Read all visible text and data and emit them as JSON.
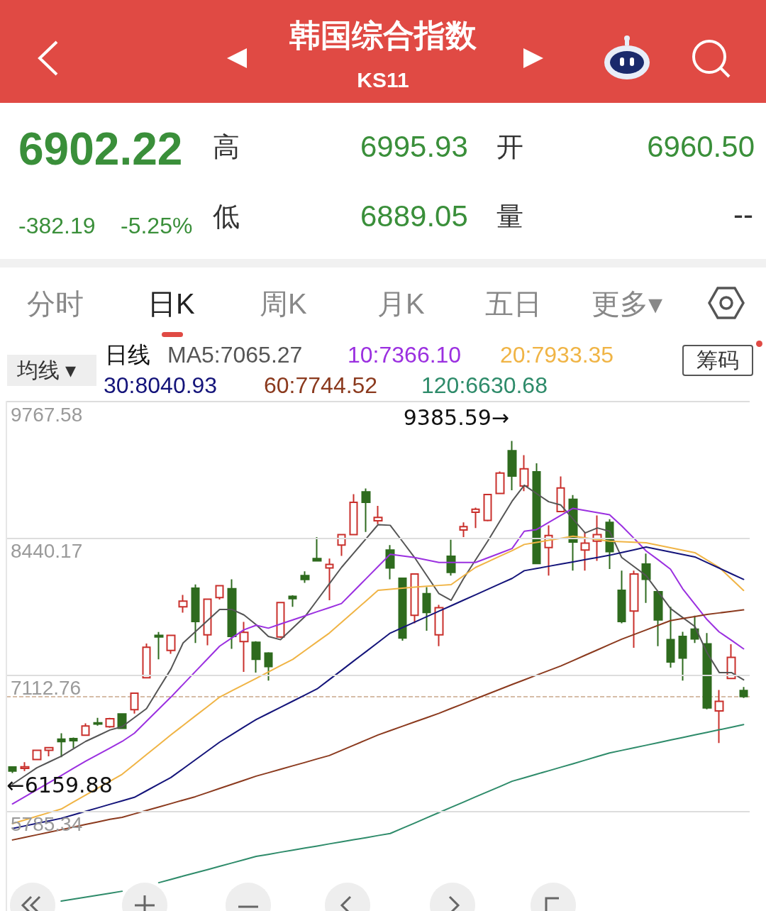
{
  "chart_data": {
    "type": "candlestick",
    "title": "韩国综合指数",
    "subtitle": "KS11",
    "categories": [
      null,
      null,
      null,
      null,
      null,
      null,
      null,
      null,
      null,
      null,
      null,
      null,
      null,
      null,
      null,
      null,
      null,
      null,
      null,
      null,
      null,
      null,
      null,
      null,
      null,
      null,
      null,
      null,
      null,
      null,
      null,
      null,
      null,
      null,
      null,
      null,
      null,
      null,
      null,
      null,
      null,
      null,
      null,
      null,
      null,
      null,
      null,
      null,
      null,
      null,
      null,
      null,
      null,
      null,
      null,
      null,
      null,
      null,
      null,
      null,
      null
    ],
    "ohlc": [
      [
        6218,
        6224,
        6159.88,
        6179
      ],
      [
        6205,
        6266,
        6179,
        6221
      ],
      [
        6291,
        6387,
        6285,
        6380
      ],
      [
        6380,
        6412,
        6323,
        6406
      ],
      [
        6489,
        6546,
        6313,
        6466
      ],
      [
        6495,
        6505,
        6403,
        6473
      ],
      [
        6527,
        6642,
        6521,
        6616
      ],
      [
        6648,
        6696,
        6620,
        6636
      ],
      [
        6610,
        6696,
        6600,
        6687
      ],
      [
        6734,
        6741,
        6588,
        6594
      ],
      [
        6776,
        6942,
        6738,
        6935
      ],
      [
        7085,
        7417,
        7079,
        7382
      ],
      [
        7497,
        7529,
        7264,
        7481
      ],
      [
        7350,
        7503,
        7318,
        7497
      ],
      [
        7774,
        7889,
        7717,
        7829
      ],
      [
        7956,
        7991,
        7423,
        7631
      ],
      [
        7503,
        7854,
        7401,
        7848
      ],
      [
        7864,
        7985,
        7845,
        7979
      ],
      [
        7950,
        8042,
        7366,
        7487
      ],
      [
        7436,
        7628,
        7143,
        7526
      ],
      [
        7430,
        7440,
        7136,
        7264
      ],
      [
        7325,
        7334,
        7057,
        7194
      ],
      [
        7481,
        7822,
        7471,
        7816
      ],
      [
        7876,
        7886,
        7774,
        7854
      ],
      [
        8077,
        8119,
        8007,
        8039
      ],
      [
        8243,
        8451,
        8215,
        8221
      ],
      [
        8151,
        8243,
        7838,
        8186
      ],
      [
        8374,
        8482,
        8269,
        8476
      ],
      [
        8476,
        8869,
        8470,
        8789
      ],
      [
        8891,
        8923,
        8502,
        8789
      ],
      [
        8610,
        8754,
        8578,
        8642
      ],
      [
        8326,
        8374,
        8042,
        8151
      ],
      [
        8052,
        8055,
        7446,
        7471
      ],
      [
        7691,
        8100,
        7615,
        8093
      ],
      [
        7902,
        7966,
        7542,
        7720
      ],
      [
        7503,
        7794,
        7392,
        7765
      ],
      [
        8266,
        8425,
        8077,
        8109
      ],
      [
        8521,
        8594,
        8451,
        8553
      ],
      [
        8693,
        8738,
        8540,
        8722
      ],
      [
        8613,
        8872,
        8604,
        8865
      ],
      [
        8875,
        9089,
        8869,
        9073
      ],
      [
        9290,
        9385.59,
        8907,
        9044
      ],
      [
        8948,
        9248,
        8897,
        9114
      ],
      [
        9085,
        9168,
        8189,
        8195
      ],
      [
        8349,
        8566,
        8077,
        8467
      ],
      [
        8699,
        9041,
        8693,
        8929
      ],
      [
        8818,
        8859,
        8125,
        8403
      ],
      [
        8326,
        8502,
        8125,
        8393
      ],
      [
        8412,
        8661,
        8221,
        8476
      ],
      [
        8594,
        8626,
        8141,
        8310
      ],
      [
        7934,
        8125,
        7615,
        7631
      ],
      [
        7733,
        8125,
        7376,
        8093
      ],
      [
        8189,
        8291,
        7813,
        8042
      ],
      [
        7921,
        7928,
        7392,
        7647
      ],
      [
        7455,
        7774,
        7184,
        7238
      ],
      [
        7487,
        7532,
        7057,
        7277
      ],
      [
        7557,
        7688,
        7423,
        7462
      ],
      [
        7414,
        7519,
        6779,
        6792
      ],
      [
        6763,
        6967,
        6451,
        6856
      ],
      [
        7079,
        7411,
        7073,
        7284
      ],
      [
        6960.5,
        6995.93,
        6889.05,
        6902.22
      ]
    ],
    "colors": [
      "#2e6b1e",
      "#c9302c",
      "#c9302c",
      "#c9302c",
      "#2e6b1e",
      "#2e6b1e",
      "#c9302c",
      "#2e6b1e",
      "#c9302c",
      "#2e6b1e",
      "#c9302c",
      "#c9302c",
      "#2e6b1e",
      "#c9302c",
      "#c9302c",
      "#2e6b1e",
      "#c9302c",
      "#c9302c",
      "#2e6b1e",
      "#c9302c",
      "#2e6b1e",
      "#2e6b1e",
      "#c9302c",
      "#2e6b1e",
      "#2e6b1e",
      "#2e6b1e",
      "#c9302c",
      "#c9302c",
      "#c9302c",
      "#2e6b1e",
      "#c9302c",
      "#2e6b1e",
      "#2e6b1e",
      "#c9302c",
      "#2e6b1e",
      "#c9302c",
      "#2e6b1e",
      "#c9302c",
      "#c9302c",
      "#c9302c",
      "#c9302c",
      "#2e6b1e",
      "#c9302c",
      "#2e6b1e",
      "#c9302c",
      "#c9302c",
      "#2e6b1e",
      "#c9302c",
      "#c9302c",
      "#2e6b1e",
      "#2e6b1e",
      "#c9302c",
      "#2e6b1e",
      "#2e6b1e",
      "#2e6b1e",
      "#2e6b1e",
      "#2e6b1e",
      "#2e6b1e",
      "#c9302c",
      "#c9302c",
      "#2e6b1e"
    ],
    "series": [
      {
        "name": "MA5:7065.27",
        "type": "line",
        "color": "#555555",
        "values": [
          6052,
          6131,
          6211,
          6267,
          6323,
          6395,
          6467,
          6522,
          6578,
          6610,
          6698,
          6786,
          6978,
          7169,
          7423,
          7532,
          7640,
          7749,
          7749,
          7695,
          7600,
          7487,
          7455,
          7567,
          7679,
          7838,
          7998,
          8157,
          8295,
          8434,
          8572,
          8566,
          8410,
          8253,
          8078,
          7902,
          7838,
          8045,
          8229,
          8412,
          8606,
          8800,
          8955,
          8875,
          8795,
          8763,
          8628,
          8492,
          8540,
          8508,
          8253,
          8165,
          8077,
          7918,
          7758,
          7670,
          7583,
          7328,
          7136,
          7136,
          7065.27
        ]
      },
      {
        "name": "10:7366.10",
        "type": "line",
        "color": "#9b30e0",
        "values": [
          5860,
          5929,
          5998,
          6067,
          6136,
          6206,
          6275,
          6339,
          6403,
          6467,
          6546,
          6663,
          6780,
          6897,
          7021,
          7145,
          7268,
          7392,
          7472,
          7551,
          7595,
          7567,
          7607,
          7647,
          7687,
          7727,
          7766,
          7806,
          7926,
          8046,
          8165,
          8285,
          8269,
          8253,
          8229,
          8205,
          8205,
          8205,
          8205,
          8250,
          8295,
          8340,
          8508,
          8524,
          8593,
          8662,
          8731,
          8710,
          8689,
          8668,
          8560,
          8440,
          8317,
          8230,
          8140,
          7950,
          7800,
          7650,
          7530,
          7450,
          7366.1
        ]
      },
      {
        "name": "20:7933.35",
        "type": "line",
        "color": "#f0b445",
        "values": [
          5669,
          5704,
          5740,
          5775,
          5810,
          5878,
          5945,
          6013,
          6080,
          6148,
          6243,
          6339,
          6434,
          6530,
          6622,
          6714,
          6805,
          6897,
          6958,
          7019,
          7080,
          7141,
          7203,
          7264,
          7349,
          7434,
          7519,
          7623,
          7727,
          7830,
          7934,
          7945,
          7955,
          7966,
          7974,
          7982,
          7990,
          8074,
          8157,
          8211,
          8266,
          8320,
          8380,
          8400,
          8420,
          8440,
          8460,
          8444,
          8428,
          8412,
          8407,
          8401,
          8396,
          8372,
          8348,
          8324,
          8300,
          8229,
          8157,
          8045,
          7933.35
        ]
      },
      {
        "name": "30:8040.93",
        "type": "line",
        "color": "#14147a",
        "values": [
          5621,
          5646,
          5671,
          5695,
          5720,
          5754,
          5788,
          5822,
          5856,
          5890,
          5924,
          5988,
          6052,
          6116,
          6202,
          6288,
          6374,
          6460,
          6533,
          6607,
          6680,
          6739,
          6799,
          6858,
          6918,
          6977,
          7067,
          7157,
          7248,
          7338,
          7428,
          7519,
          7572,
          7625,
          7679,
          7732,
          7785,
          7838,
          7891,
          7944,
          7997,
          8050,
          8125,
          8146,
          8168,
          8189,
          8211,
          8232,
          8254,
          8275,
          8302,
          8328,
          8355,
          8331,
          8307,
          8283,
          8259,
          8204,
          8150,
          8095,
          8040.93
        ]
      },
      {
        "name": "60:7744.52",
        "type": "line",
        "color": "#8b3a1e",
        "values": [
          5510,
          5535,
          5560,
          5585,
          5610,
          5635,
          5660,
          5685,
          5710,
          5730,
          5763,
          5797,
          5830,
          5863,
          5897,
          5930,
          5970,
          6010,
          6050,
          6090,
          6130,
          6163,
          6197,
          6230,
          6263,
          6297,
          6330,
          6380,
          6430,
          6480,
          6530,
          6572,
          6614,
          6656,
          6698,
          6740,
          6787,
          6833,
          6880,
          6927,
          6973,
          7020,
          7065,
          7110,
          7155,
          7200,
          7252,
          7304,
          7356,
          7408,
          7460,
          7505,
          7550,
          7595,
          7640,
          7660,
          7680,
          7700,
          7715,
          7730,
          7744.52
        ]
      },
      {
        "name": "120:6630.68",
        "type": "line",
        "color": "#2e8b6a",
        "values": [
          null,
          null,
          null,
          null,
          4916,
          4935,
          4955,
          4974,
          4993,
          5012,
          null,
          null,
          5095,
          5127,
          5159,
          5191,
          5222,
          5254,
          5286,
          5318,
          5350,
          5370,
          5391,
          5411,
          5431,
          5451,
          5472,
          5492,
          5512,
          5532,
          5553,
          5573,
          5624,
          5674,
          5725,
          5776,
          5827,
          5877,
          5928,
          5979,
          6029,
          6080,
          6114,
          6148,
          6182,
          6216,
          6250,
          6285,
          6320,
          6355,
          6380,
          6405,
          6430,
          6455,
          6480,
          6505,
          6530,
          6555,
          6580,
          6605,
          6630.68
        ]
      }
    ],
    "ylim": [
      4820,
      9767.58
    ],
    "yticks": [
      9767.58,
      8440.17,
      7112.76,
      5785.34
    ],
    "grid": "y",
    "marker": "none",
    "line_style": "solid",
    "ref_lines": [
      {
        "axis": "y",
        "value": 6902.22,
        "color": "#c9a88a",
        "line_style": "dashed"
      }
    ],
    "annotations": [
      "6902.22",
      "高",
      "6995.93",
      "开",
      "6960.50",
      "-382.19",
      "-5.25%",
      "低",
      "6889.05",
      "量",
      "--",
      "分时",
      "日K",
      "周K",
      "月K",
      "五日",
      "更多▾",
      "均线 ▾",
      "日线",
      "筹码",
      "9385.59→",
      "←6159.88"
    ]
  }
}
